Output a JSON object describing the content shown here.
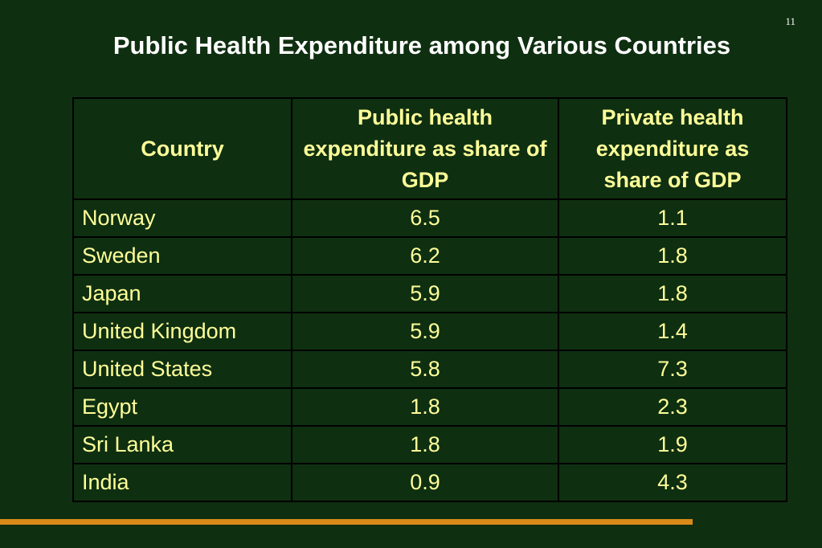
{
  "page_number": "11",
  "title": "Public Health Expenditure among Various Countries",
  "table": {
    "headers": [
      "Country",
      "Public health expenditure as share of GDP",
      "Private health expenditure as share of GDP"
    ],
    "rows": [
      {
        "country": "Norway",
        "public": "6.5",
        "private": "1.1"
      },
      {
        "country": "Sweden",
        "public": "6.2",
        "private": "1.8"
      },
      {
        "country": "Japan",
        "public": "5.9",
        "private": "1.8"
      },
      {
        "country": "United Kingdom",
        "public": "5.9",
        "private": "1.4"
      },
      {
        "country": "United States",
        "public": "5.8",
        "private": "7.3"
      },
      {
        "country": "Egypt",
        "public": "1.8",
        "private": "2.3"
      },
      {
        "country": "Sri Lanka",
        "public": "1.8",
        "private": "1.9"
      },
      {
        "country": "India",
        "public": "0.9",
        "private": "4.3"
      }
    ]
  },
  "colors": {
    "background": "#0f2f11",
    "title_text": "#ffffff",
    "table_text": "#ffff99",
    "accent_bar": "#d98a1a"
  }
}
